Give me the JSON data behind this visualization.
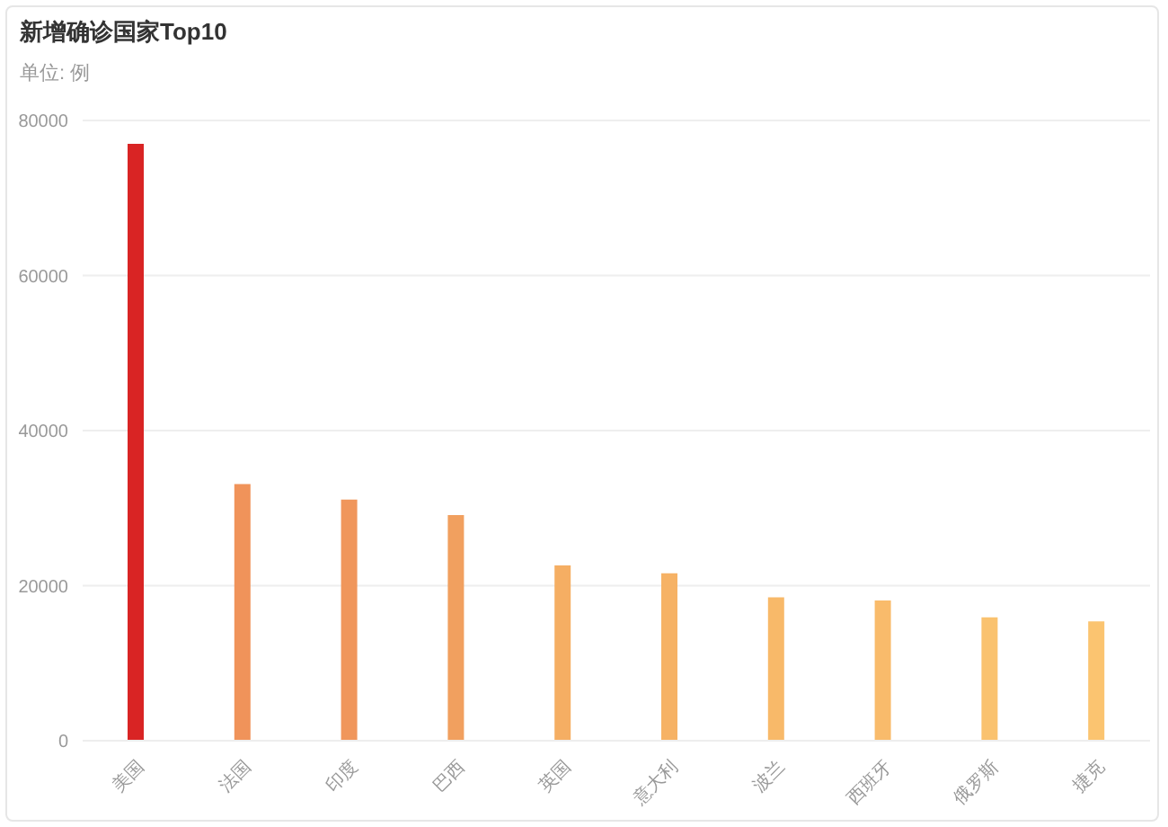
{
  "chart_data": {
    "type": "bar",
    "title": "新增确诊国家Top10",
    "subtitle": "单位: 例",
    "categories": [
      "美国",
      "法国",
      "印度",
      "巴西",
      "英国",
      "意大利",
      "波兰",
      "西班牙",
      "俄罗斯",
      "捷克"
    ],
    "values": [
      77000,
      33100,
      31100,
      29100,
      22600,
      21600,
      18500,
      18100,
      15900,
      15400
    ],
    "colors": [
      "#d92424",
      "#f0935a",
      "#f0965b",
      "#f1a05f",
      "#f5ae63",
      "#f6b265",
      "#f8b969",
      "#f9bb6b",
      "#fac26f",
      "#fbc470"
    ],
    "ylim": [
      0,
      80000
    ],
    "yticks": [
      0,
      20000,
      40000,
      60000,
      80000
    ],
    "grid": "y"
  }
}
